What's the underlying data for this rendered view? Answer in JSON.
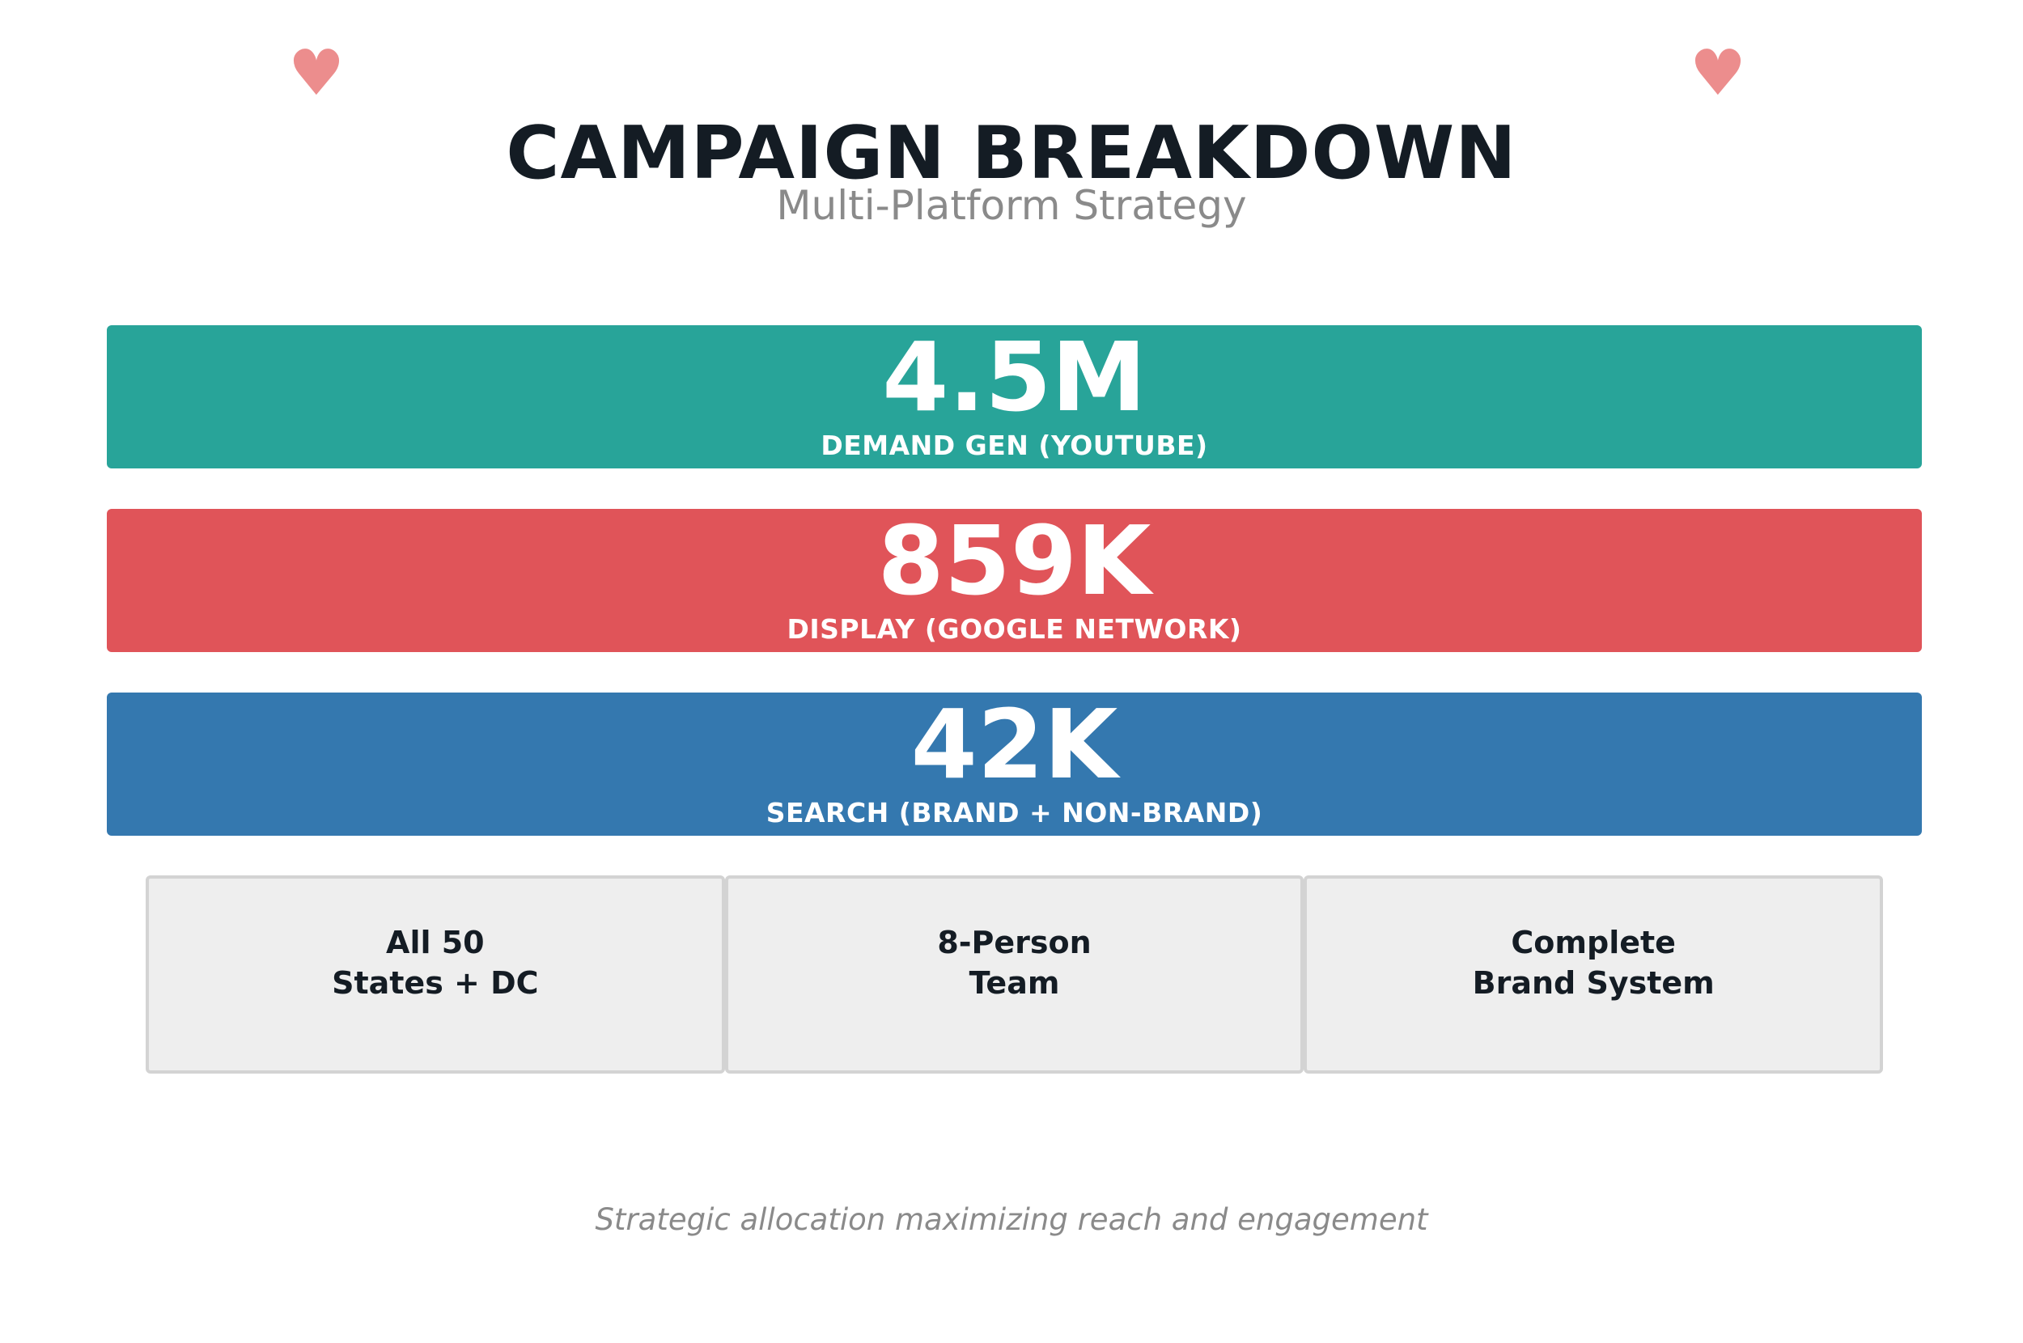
{
  "decorations": {
    "left_icon": "heart-icon",
    "right_icon": "heart-icon",
    "heart_color": "#ec8d8d"
  },
  "header": {
    "title": "CAMPAIGN BREAKDOWN",
    "subtitle": "Multi-Platform Strategy"
  },
  "metrics": [
    {
      "value": "4.5M",
      "label": "DEMAND GEN (YOUTUBE)",
      "color": "#28a499"
    },
    {
      "value": "859K",
      "label": "DISPLAY (GOOGLE NETWORK)",
      "color": "#e05459"
    },
    {
      "value": "42K",
      "label": "SEARCH (BRAND + NON-BRAND)",
      "color": "#3478af"
    }
  ],
  "features": [
    {
      "line1": "All 50",
      "line2": "States + DC"
    },
    {
      "line1": "8-Person",
      "line2": "Team"
    },
    {
      "line1": "Complete",
      "line2": "Brand System"
    }
  ],
  "footer": {
    "caption": "Strategic allocation maximizing reach and engagement"
  }
}
